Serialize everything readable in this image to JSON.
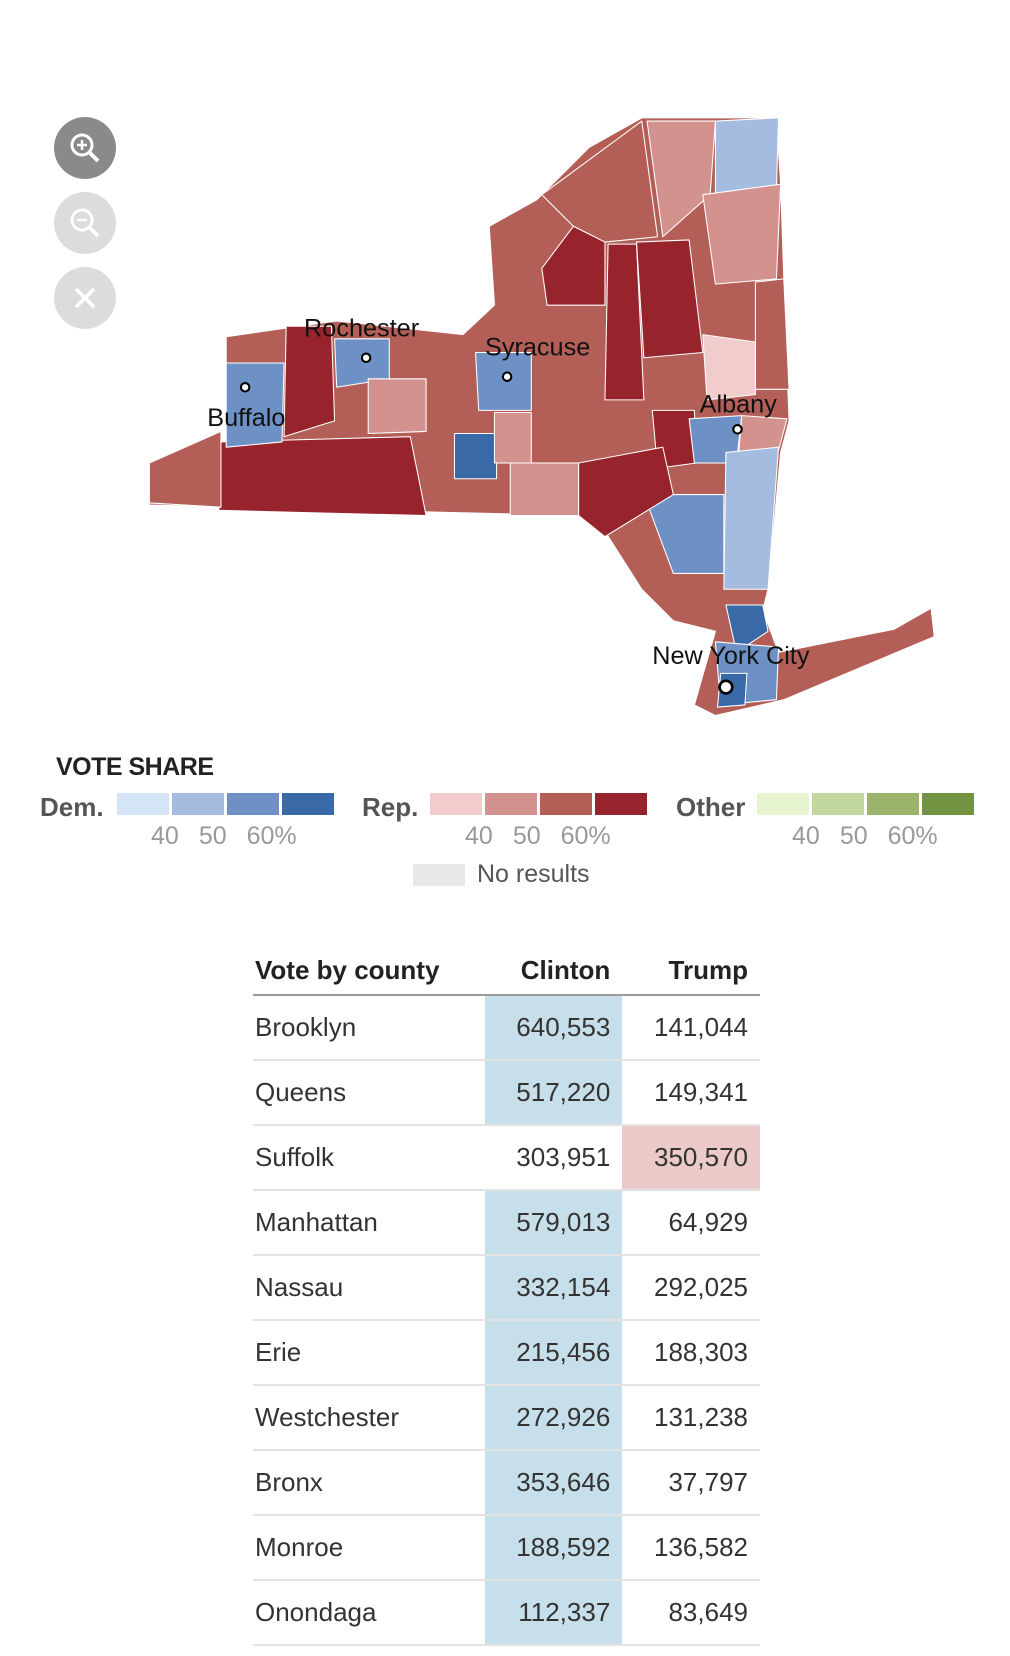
{
  "zoom_controls": {
    "zoom_in": "zoom-in",
    "zoom_out": "zoom-out",
    "reset": "close"
  },
  "map": {
    "cities": [
      "Rochester",
      "Syracuse",
      "Buffalo",
      "Albany",
      "New York City"
    ]
  },
  "legend": {
    "title": "VOTE SHARE",
    "groups": [
      {
        "label": "Dem.",
        "colors": [
          "#d3e5f7",
          "#a3bce0",
          "#6e91c5",
          "#3a69a8"
        ],
        "ticks": [
          "40",
          "50",
          "60%"
        ]
      },
      {
        "label": "Rep.",
        "colors": [
          "#f0cccd",
          "#d4928e",
          "#b35f58",
          "#97232c"
        ],
        "ticks": [
          "40",
          "50",
          "60%"
        ]
      },
      {
        "label": "Other",
        "colors": [
          "#e6f5d0",
          "#c3d7a0",
          "#9ab46c",
          "#739443"
        ],
        "ticks": [
          "40",
          "50",
          "60%"
        ]
      }
    ],
    "no_results": "No results"
  },
  "table": {
    "headers": [
      "Vote by county",
      "Clinton",
      "Trump"
    ],
    "rows": [
      {
        "county": "Brooklyn",
        "clinton": "640,553",
        "trump": "141,044",
        "winner": "d"
      },
      {
        "county": "Queens",
        "clinton": "517,220",
        "trump": "149,341",
        "winner": "d"
      },
      {
        "county": "Suffolk",
        "clinton": "303,951",
        "trump": "350,570",
        "winner": "r"
      },
      {
        "county": "Manhattan",
        "clinton": "579,013",
        "trump": "64,929",
        "winner": "d"
      },
      {
        "county": "Nassau",
        "clinton": "332,154",
        "trump": "292,025",
        "winner": "d"
      },
      {
        "county": "Erie",
        "clinton": "215,456",
        "trump": "188,303",
        "winner": "d"
      },
      {
        "county": "Westchester",
        "clinton": "272,926",
        "trump": "131,238",
        "winner": "d"
      },
      {
        "county": "Bronx",
        "clinton": "353,646",
        "trump": "37,797",
        "winner": "d"
      },
      {
        "county": "Monroe",
        "clinton": "188,592",
        "trump": "136,582",
        "winner": "d"
      },
      {
        "county": "Onondaga",
        "clinton": "112,337",
        "trump": "83,649",
        "winner": "d"
      }
    ]
  }
}
